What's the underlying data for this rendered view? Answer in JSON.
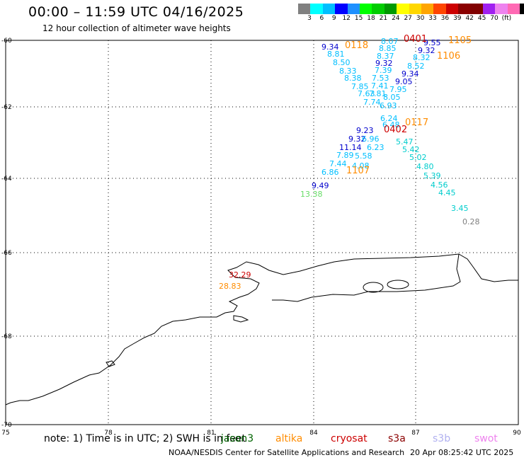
{
  "title": "00:00 – 11:59 UTC 04/16/2025",
  "subtitle": "12 hour collection of altimeter wave heights",
  "scale": {
    "colors": [
      "#808080",
      "#00ffff",
      "#00bfff",
      "#0000ff",
      "#1e90ff",
      "#00ff00",
      "#00cd00",
      "#009900",
      "#ffff00",
      "#ffd700",
      "#ffa500",
      "#ff4500",
      "#cd0000",
      "#8b0000",
      "#800000",
      "#a020f0",
      "#ee82ee",
      "#ff69b4",
      "#000000"
    ],
    "labels": [
      "3",
      "6",
      "9",
      "12",
      "15",
      "18",
      "21",
      "24",
      "27",
      "30",
      "33",
      "36",
      "39",
      "42",
      "45",
      "70",
      "(ft)"
    ]
  },
  "axes": {
    "lon_ticks": [
      "75",
      "78",
      "81",
      "84",
      "87",
      "90"
    ],
    "lat_ticks": [
      "-60",
      "-62",
      "-64",
      "-66",
      "-68",
      "-70"
    ]
  },
  "wave_heights": [
    {
      "v": "9.34",
      "c": "#0000cd"
    },
    {
      "v": "8.81",
      "c": "#00bfff"
    },
    {
      "v": "8.50",
      "c": "#00bfff"
    },
    {
      "v": "8.33",
      "c": "#00bfff"
    },
    {
      "v": "8.38",
      "c": "#00bfff"
    },
    {
      "v": "7.85",
      "c": "#00bfff"
    },
    {
      "v": "7.63",
      "c": "#00bfff"
    },
    {
      "v": "7.74",
      "c": "#00bfff"
    },
    {
      "v": "9.23",
      "c": "#0000cd"
    },
    {
      "v": "9.32",
      "c": "#0000cd"
    },
    {
      "v": "11.14",
      "c": "#0000cd"
    },
    {
      "v": "7.89",
      "c": "#00bfff"
    },
    {
      "v": "7.44",
      "c": "#00bfff"
    },
    {
      "v": "6.86",
      "c": "#00bfff"
    },
    {
      "v": "9.49",
      "c": "#0000cd"
    },
    {
      "v": "13.38",
      "c": "#66dd66"
    },
    {
      "v": "8.07",
      "c": "#00bfff"
    },
    {
      "v": "8.85",
      "c": "#00bfff"
    },
    {
      "v": "8.37",
      "c": "#00bfff"
    },
    {
      "v": "9.32",
      "c": "#0000cd"
    },
    {
      "v": "7.39",
      "c": "#00bfff"
    },
    {
      "v": "7.53",
      "c": "#00bfff"
    },
    {
      "v": "7.41",
      "c": "#00bfff"
    },
    {
      "v": "7.81",
      "c": "#00bfff"
    },
    {
      "v": "6.96",
      "c": "#00bfff"
    },
    {
      "v": "6.23",
      "c": "#00bfff"
    },
    {
      "v": "5.58",
      "c": "#00bfff"
    },
    {
      "v": "4.08",
      "c": "#00bfff"
    },
    {
      "v": "9.55",
      "c": "#0000cd"
    },
    {
      "v": "9.32",
      "c": "#0000cd"
    },
    {
      "v": "8.32",
      "c": "#00bfff"
    },
    {
      "v": "8.52",
      "c": "#00bfff"
    },
    {
      "v": "9.34",
      "c": "#0000cd"
    },
    {
      "v": "9.05",
      "c": "#0000cd"
    },
    {
      "v": "7.95",
      "c": "#00bfff"
    },
    {
      "v": "8.05",
      "c": "#00bfff"
    },
    {
      "v": "6.93",
      "c": "#00bfff"
    },
    {
      "v": "6.24",
      "c": "#00bfff"
    },
    {
      "v": "6.48",
      "c": "#00bfff"
    },
    {
      "v": "5.47",
      "c": "#00cdcd"
    },
    {
      "v": "5.42",
      "c": "#00cdcd"
    },
    {
      "v": "5.02",
      "c": "#00cdcd"
    },
    {
      "v": "4.80",
      "c": "#00cdcd"
    },
    {
      "v": "5.39",
      "c": "#00cdcd"
    },
    {
      "v": "4.56",
      "c": "#00cdcd"
    },
    {
      "v": "4.45",
      "c": "#00cdcd"
    },
    {
      "v": "3.45",
      "c": "#00cdcd"
    },
    {
      "v": "0.28",
      "c": "#808080"
    },
    {
      "v": "32.29",
      "c": "#cd0000"
    },
    {
      "v": "28.83",
      "c": "#ff8c00"
    }
  ],
  "pass_times": [
    {
      "t": "0118",
      "c": "#ff8c00"
    },
    {
      "t": "0401",
      "c": "#cd0000"
    },
    {
      "t": "1105",
      "c": "#ff8c00"
    },
    {
      "t": "1106",
      "c": "#ff8c00"
    },
    {
      "t": "0117",
      "c": "#ff8c00"
    },
    {
      "t": "0402",
      "c": "#cd0000"
    },
    {
      "t": "1107",
      "c": "#ff8c00"
    }
  ],
  "legend": {
    "note": "note: 1) Time is in UTC; 2) SWH is in feet",
    "satellites": [
      {
        "name": "jason3",
        "color": "#006400"
      },
      {
        "name": "altika",
        "color": "#ff8c00"
      },
      {
        "name": "cryosat",
        "color": "#cd0000"
      },
      {
        "name": "s3a",
        "color": "#8b0000"
      },
      {
        "name": "s3b",
        "color": "#b0b0f0"
      },
      {
        "name": "swot",
        "color": "#ee82ee"
      }
    ]
  },
  "credit": "NOAA/NESDIS Center for Satellite Applications and Research",
  "timestamp": "20 Apr 08:25:42 UTC 2025"
}
